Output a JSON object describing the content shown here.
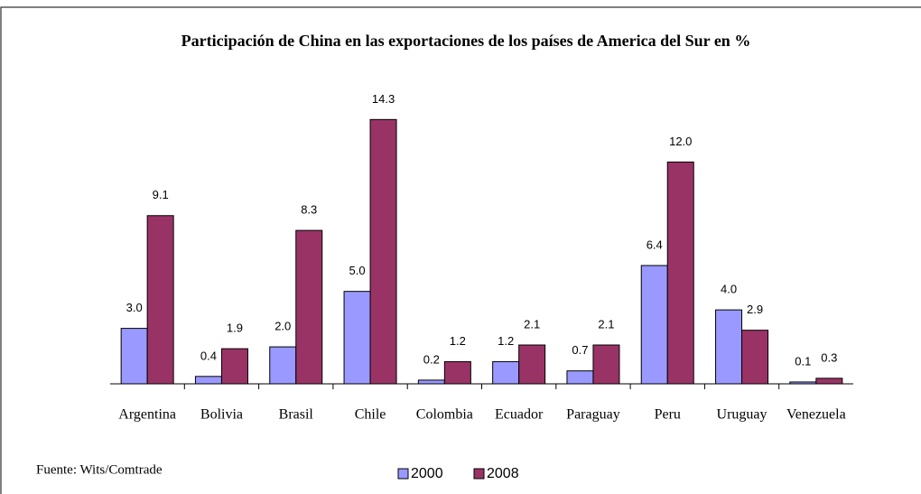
{
  "chart_data": {
    "type": "bar",
    "title": "Participación de China en las exportaciones de los países de America del Sur en %",
    "categories": [
      "Argentina",
      "Bolivia",
      "Brasil",
      "Chile",
      "Colombia",
      "Ecuador",
      "Paraguay",
      "Peru",
      "Uruguay",
      "Venezuela"
    ],
    "series": [
      {
        "name": "2000",
        "color": "#9999ff",
        "values": [
          3.0,
          0.4,
          2.0,
          5.0,
          0.2,
          1.2,
          0.7,
          6.4,
          4.0,
          0.1
        ],
        "value_labels": [
          "3.0",
          "0.4",
          "2.0",
          "5.0",
          "0.2",
          "1.2",
          "0.7",
          "6.4",
          "4.0",
          "0.1"
        ]
      },
      {
        "name": "2008",
        "color": "#993366",
        "values": [
          9.1,
          1.9,
          8.3,
          14.3,
          1.2,
          2.1,
          2.1,
          12.0,
          2.9,
          0.3
        ],
        "value_labels": [
          "9.1",
          "1.9",
          "8.3",
          "14.3",
          "1.2",
          "2.1",
          "2.1",
          "12.0",
          "2.9",
          "0.3"
        ]
      }
    ],
    "ylim": [
      0,
      15
    ],
    "source": "Fuente: Wits/Comtrade"
  }
}
